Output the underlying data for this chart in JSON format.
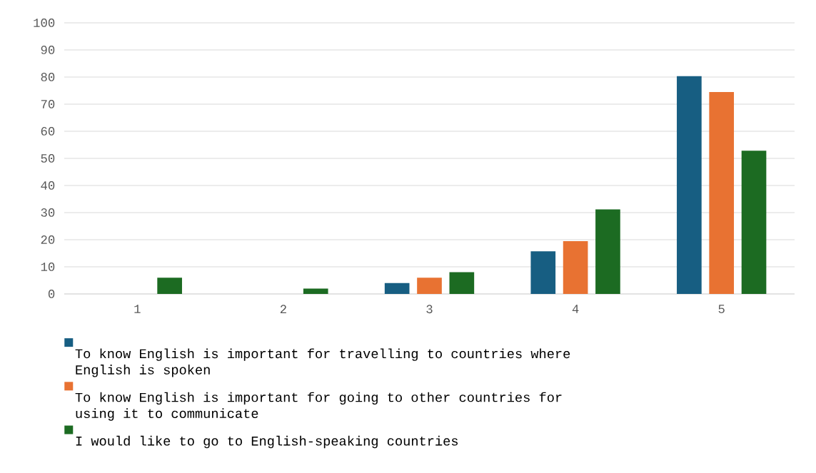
{
  "chart_data": {
    "type": "bar",
    "categories": [
      "1",
      "2",
      "3",
      "4",
      "5"
    ],
    "series": [
      {
        "name": "To know English is important for travelling to countries where English is spoken",
        "color": "#175e82",
        "values": [
          0,
          0,
          4,
          15.7,
          80.3
        ]
      },
      {
        "name": "To know English is important for going to other countries for using it to communicate",
        "color": "#e87232",
        "values": [
          0,
          0,
          6,
          19.5,
          74.5
        ]
      },
      {
        "name": "I would like to go to English-speaking countries",
        "color": "#1c6b22",
        "values": [
          6,
          2,
          8,
          31.2,
          52.8
        ]
      }
    ],
    "ylim": [
      0,
      100
    ],
    "yticks": [
      0,
      10,
      20,
      30,
      40,
      50,
      60,
      70,
      80,
      90,
      100
    ],
    "grid": "y",
    "legend": "bottom"
  }
}
